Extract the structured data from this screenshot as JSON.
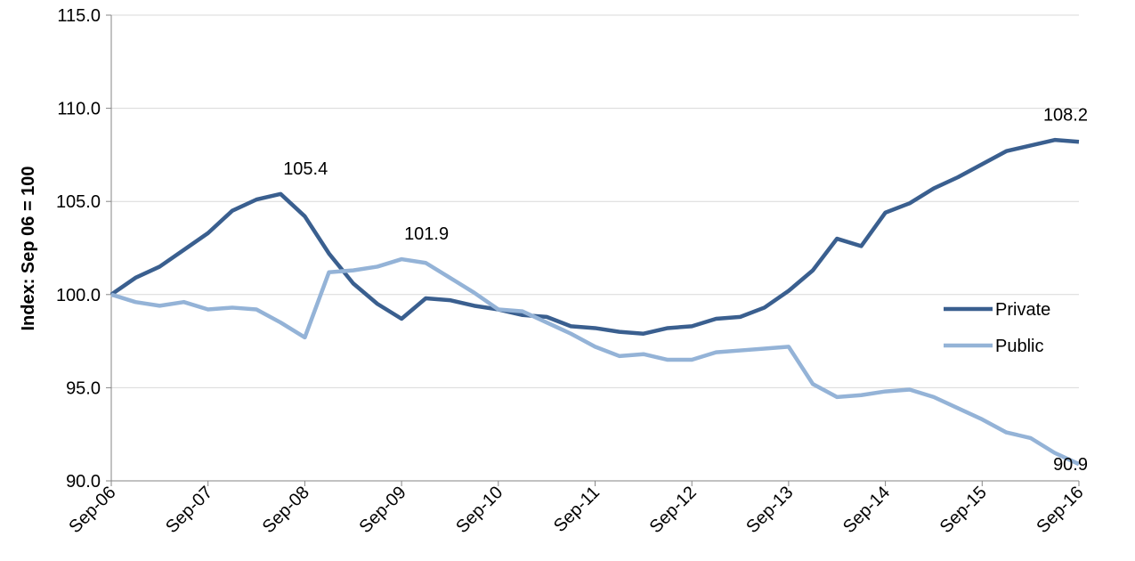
{
  "chart_data": {
    "type": "line",
    "y_label": "Index: Sep 06 = 100",
    "categories": [
      "Sep-06",
      null,
      null,
      null,
      "Sep-07",
      null,
      null,
      null,
      "Sep-08",
      null,
      null,
      null,
      "Sep-09",
      null,
      null,
      null,
      "Sep-10",
      null,
      null,
      null,
      "Sep-11",
      null,
      null,
      null,
      "Sep-12",
      null,
      null,
      null,
      "Sep-13",
      null,
      null,
      null,
      "Sep-14",
      null,
      null,
      null,
      "Sep-15",
      null,
      null,
      null,
      "Sep-16"
    ],
    "series": [
      {
        "name": "Private",
        "color": "#3a5f8f",
        "values": [
          100.0,
          100.9,
          101.5,
          102.4,
          103.3,
          104.5,
          105.1,
          105.4,
          104.2,
          102.2,
          100.6,
          99.5,
          98.7,
          99.8,
          99.7,
          99.4,
          99.2,
          98.9,
          98.8,
          98.3,
          98.2,
          98.0,
          97.9,
          98.2,
          98.3,
          98.7,
          98.8,
          99.3,
          100.2,
          101.3,
          103.0,
          102.6,
          104.4,
          104.9,
          105.7,
          106.3,
          107.0,
          107.7,
          108.0,
          108.3,
          108.2
        ],
        "value_labels": [
          null,
          null,
          null,
          null,
          null,
          null,
          null,
          "105.4",
          null,
          null,
          null,
          null,
          null,
          null,
          null,
          null,
          null,
          null,
          null,
          null,
          null,
          null,
          null,
          null,
          null,
          null,
          null,
          null,
          null,
          null,
          null,
          null,
          null,
          null,
          null,
          null,
          null,
          null,
          null,
          null,
          "108.2"
        ]
      },
      {
        "name": "Public",
        "color": "#94b3d7",
        "values": [
          100.0,
          99.6,
          99.4,
          99.6,
          99.2,
          99.3,
          99.2,
          98.5,
          97.7,
          101.2,
          101.3,
          101.5,
          101.9,
          101.7,
          100.9,
          100.1,
          99.2,
          99.1,
          98.5,
          97.9,
          97.2,
          96.7,
          96.8,
          96.5,
          96.5,
          96.9,
          97.0,
          97.1,
          97.2,
          95.2,
          94.5,
          94.6,
          94.8,
          94.9,
          94.5,
          93.9,
          93.3,
          92.6,
          92.3,
          91.5,
          90.9
        ],
        "value_labels": [
          null,
          null,
          null,
          null,
          null,
          null,
          null,
          null,
          null,
          null,
          null,
          null,
          "101.9",
          null,
          null,
          null,
          null,
          null,
          null,
          null,
          null,
          null,
          null,
          null,
          null,
          null,
          null,
          null,
          null,
          null,
          null,
          null,
          null,
          null,
          null,
          null,
          null,
          null,
          null,
          null,
          "90.9"
        ]
      }
    ],
    "ylim": [
      90,
      115
    ],
    "yticks": [
      {
        "value": 90,
        "label": "90.0"
      },
      {
        "value": 95,
        "label": "95.0"
      },
      {
        "value": 100,
        "label": "100.0"
      },
      {
        "value": 105,
        "label": "105.0"
      },
      {
        "value": 110,
        "label": "110.0"
      },
      {
        "value": 115,
        "label": "115.0"
      }
    ],
    "grid": true,
    "legend": "right"
  }
}
